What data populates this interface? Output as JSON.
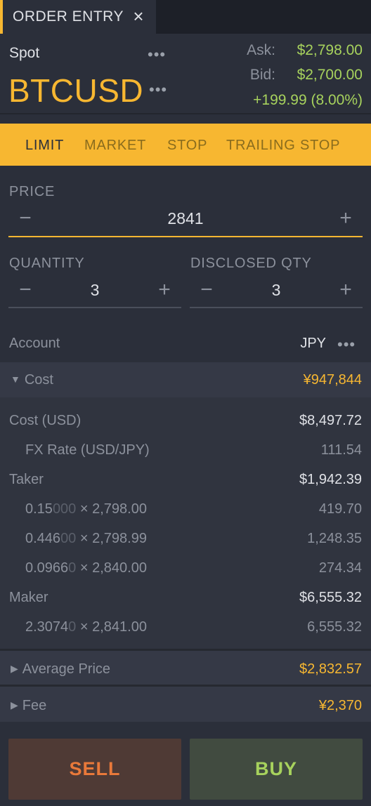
{
  "tab": {
    "title": "ORDER ENTRY",
    "close_icon": "×"
  },
  "header": {
    "market_type": "Spot",
    "symbol": "BTCUSD",
    "ask_label": "Ask:",
    "ask_value": "$2,798.00",
    "bid_label": "Bid:",
    "bid_value": "$2,700.00",
    "change": "+199.99 (8.00%)"
  },
  "order_types": [
    "LIMIT",
    "MARKET",
    "STOP",
    "TRAILING STOP"
  ],
  "price": {
    "label": "PRICE",
    "value": "2841"
  },
  "quantity": {
    "label": "QUANTITY",
    "value": "3"
  },
  "disclosed": {
    "label": "DISCLOSED QTY",
    "value": "3"
  },
  "account": {
    "label": "Account",
    "value": "JPY"
  },
  "cost": {
    "label": "Cost",
    "value": "¥947,844",
    "cost_usd_label": "Cost (USD)",
    "cost_usd_value": "$8,497.72",
    "fx_label": "FX Rate (USD/JPY)",
    "fx_value": "111.54",
    "taker_label": "Taker",
    "taker_value": "$1,942.39",
    "taker_fills": [
      {
        "qty_main": "0.15",
        "qty_dim": "000",
        "price": " × 2,798.00",
        "total": "419.70"
      },
      {
        "qty_main": "0.446",
        "qty_dim": "00",
        "price": " × 2,798.99",
        "total": "1,248.35"
      },
      {
        "qty_main": "0.0966",
        "qty_dim": "0",
        "price": " × 2,840.00",
        "total": "274.34"
      }
    ],
    "maker_label": "Maker",
    "maker_value": "$6,555.32",
    "maker_fills": [
      {
        "qty_main": "2.3074",
        "qty_dim": "0",
        "price": " × 2,841.00",
        "total": "6,555.32"
      }
    ]
  },
  "average_price": {
    "label": "Average Price",
    "value": "$2,832.57"
  },
  "fee": {
    "label": "Fee",
    "value": "¥2,370"
  },
  "actions": {
    "sell": "SELL",
    "buy": "BUY"
  },
  "colors": {
    "accent": "#f7b731",
    "positive": "#a7d25d",
    "sell": "#e9793a"
  },
  "icons": [
    "close-icon",
    "more-icon",
    "minus-icon",
    "plus-icon",
    "caret-down-icon",
    "caret-right-icon"
  ]
}
